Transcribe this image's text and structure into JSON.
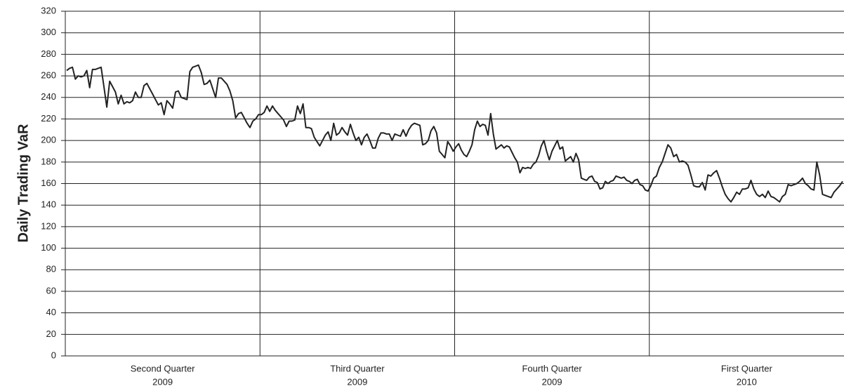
{
  "chart_data": {
    "type": "line",
    "y_label": "Daily Trading VaR",
    "color": "#222222",
    "grid": true,
    "ylim": [
      0,
      320
    ],
    "yticks": [
      0,
      20,
      40,
      60,
      80,
      100,
      120,
      140,
      160,
      180,
      200,
      220,
      240,
      260,
      280,
      300,
      320
    ],
    "categories": [
      [
        "Second Quarter",
        "2009"
      ],
      [
        "Third Quarter",
        "2009"
      ],
      [
        "Fourth Quarter",
        "2009"
      ],
      [
        "First Quarter",
        "2010"
      ]
    ],
    "values": [
      [
        265,
        267,
        268,
        257,
        260,
        259,
        260,
        265,
        249,
        266,
        266,
        267,
        268,
        250,
        231,
        255,
        250,
        245,
        234,
        242,
        234,
        236,
        235,
        237,
        245,
        240,
        240,
        251,
        253,
        248,
        243,
        238,
        233,
        235,
        224,
        237,
        234,
        230,
        245,
        246,
        240,
        239,
        238,
        264,
        268,
        269,
        270,
        263,
        252,
        253,
        256,
        248,
        240,
        258,
        258,
        255,
        252,
        246,
        237,
        221,
        225,
        226,
        221,
        216,
        212,
        218,
        220,
        224
      ],
      [
        224,
        226,
        232,
        227,
        232,
        228,
        225,
        222,
        219,
        213,
        218,
        218,
        219,
        232,
        225,
        234,
        212,
        212,
        211,
        203,
        199,
        195,
        200,
        205,
        208,
        200,
        216,
        205,
        207,
        212,
        208,
        205,
        215,
        207,
        200,
        203,
        196,
        203,
        206,
        200,
        193,
        193,
        202,
        207,
        207,
        206,
        206,
        200,
        206,
        205,
        204,
        210,
        204,
        210,
        214,
        216,
        215,
        214,
        196,
        197,
        200,
        209,
        213,
        207,
        190,
        187,
        184,
        199,
        195,
        190
      ],
      [
        194,
        197,
        191,
        187,
        185,
        190,
        196,
        210,
        218,
        213,
        215,
        214,
        205,
        225,
        206,
        192,
        194,
        196,
        193,
        195,
        194,
        189,
        184,
        180,
        170,
        175,
        174,
        175,
        174,
        178,
        180,
        186,
        195,
        200,
        190,
        182,
        190,
        195,
        200,
        192,
        194,
        181,
        183,
        185,
        180,
        188,
        182,
        165,
        164,
        163,
        166,
        167,
        162,
        161,
        155,
        156,
        162,
        160,
        162,
        163,
        167,
        166,
        165,
        166,
        163,
        162,
        160,
        163,
        164,
        159,
        158,
        154,
        153
      ],
      [
        158,
        165,
        167,
        175,
        180,
        188,
        196,
        193,
        185,
        187,
        180,
        181,
        180,
        177,
        168,
        158,
        157,
        157,
        161,
        154,
        168,
        167,
        170,
        172,
        165,
        157,
        150,
        146,
        143,
        147,
        152,
        150,
        155,
        155,
        156,
        163,
        155,
        150,
        148,
        150,
        147,
        153,
        148,
        147,
        145,
        143,
        148,
        150,
        159,
        158,
        159,
        160,
        162,
        165,
        160,
        158,
        155,
        154,
        180,
        168,
        150,
        149,
        148,
        147,
        152,
        155,
        158,
        162
      ]
    ]
  }
}
